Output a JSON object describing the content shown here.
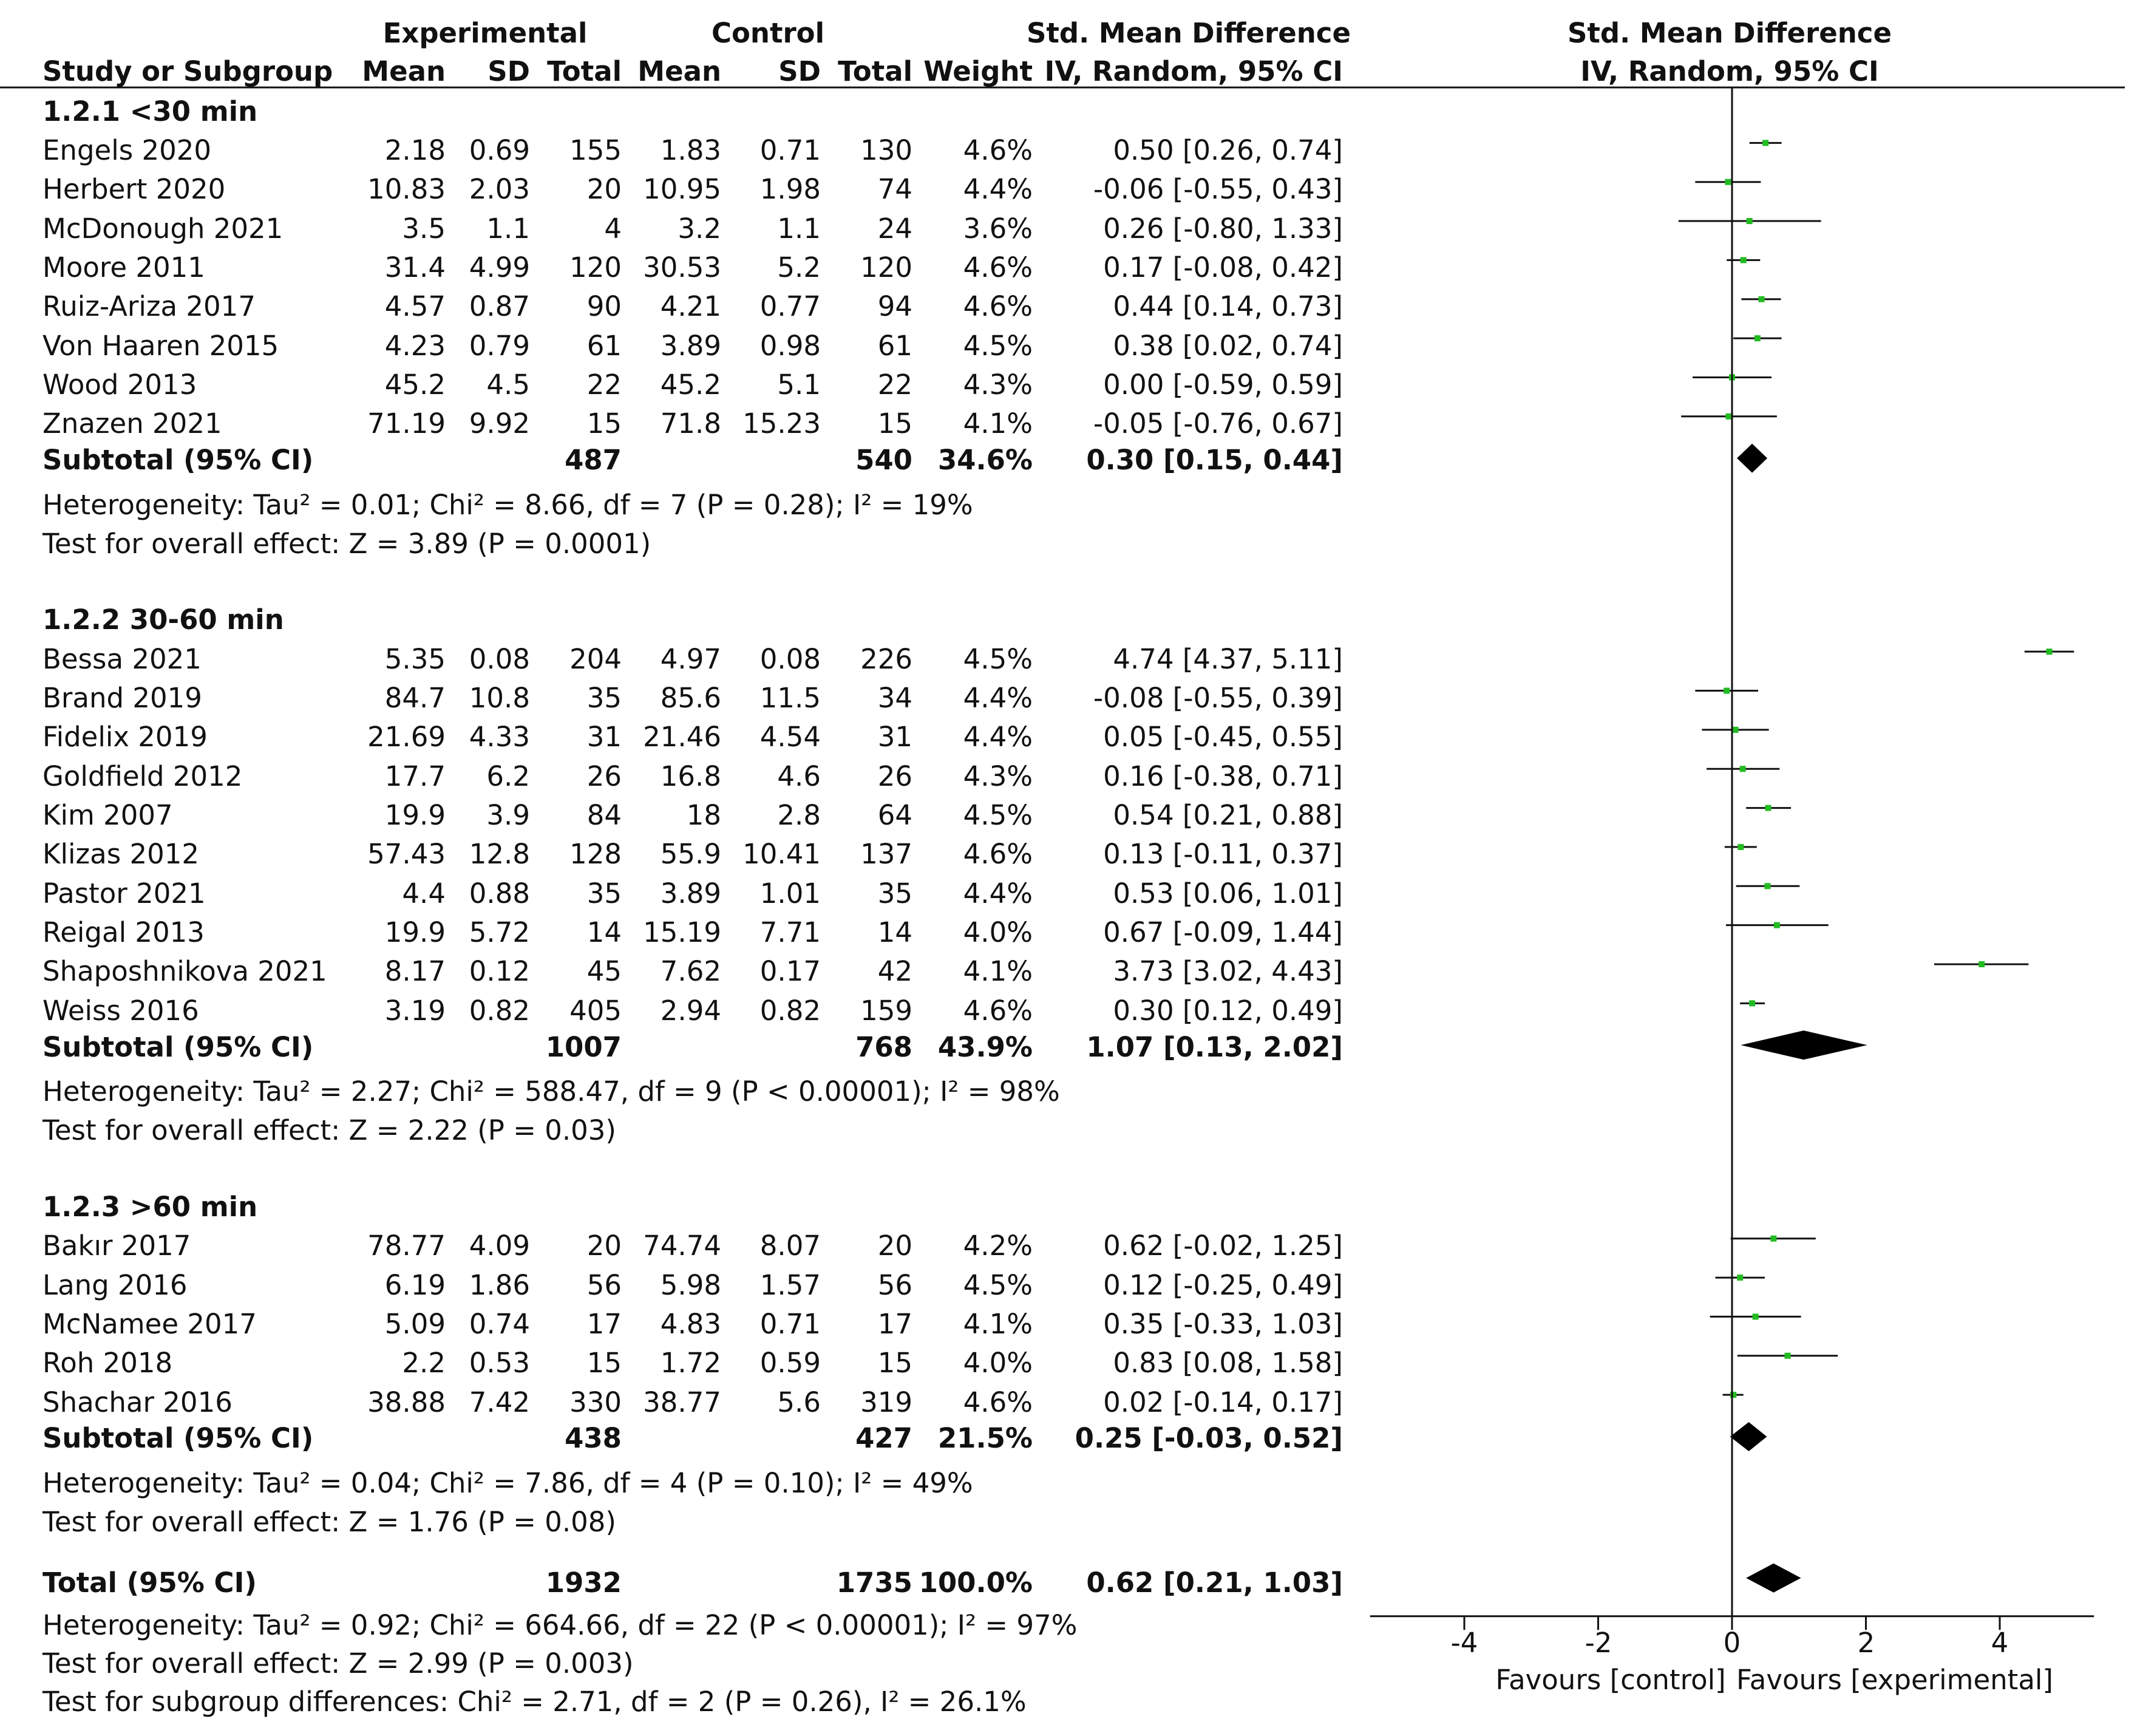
{
  "header": {
    "experimental": "Experimental",
    "control": "Control",
    "smd_table": "Std. Mean Difference",
    "smd_plot": "Std. Mean Difference",
    "col_study": "Study or Subgroup",
    "col_mean_e": "Mean",
    "col_sd_e": "SD",
    "col_total_e": "Total",
    "col_mean_c": "Mean",
    "col_sd_c": "SD",
    "col_total_c": "Total",
    "col_weight": "Weight",
    "col_ci_table": "IV, Random, 95% CI",
    "col_ci_plot": "IV, Random, 95% CI"
  },
  "groups": [
    {
      "title": "1.2.1 <30 min",
      "studies": [
        {
          "name": "Engels 2020",
          "mean_e": "2.18",
          "sd_e": "0.69",
          "total_e": "155",
          "mean_c": "1.83",
          "sd_c": "0.71",
          "total_c": "130",
          "weight": "4.6%",
          "ci": "0.50 [0.26, 0.74]",
          "est": 0.5,
          "lo": 0.26,
          "hi": 0.74
        },
        {
          "name": "Herbert 2020",
          "mean_e": "10.83",
          "sd_e": "2.03",
          "total_e": "20",
          "mean_c": "10.95",
          "sd_c": "1.98",
          "total_c": "74",
          "weight": "4.4%",
          "ci": "-0.06 [-0.55, 0.43]",
          "est": -0.06,
          "lo": -0.55,
          "hi": 0.43
        },
        {
          "name": "McDonough 2021",
          "mean_e": "3.5",
          "sd_e": "1.1",
          "total_e": "4",
          "mean_c": "3.2",
          "sd_c": "1.1",
          "total_c": "24",
          "weight": "3.6%",
          "ci": "0.26 [-0.80, 1.33]",
          "est": 0.26,
          "lo": -0.8,
          "hi": 1.33
        },
        {
          "name": "Moore 2011",
          "mean_e": "31.4",
          "sd_e": "4.99",
          "total_e": "120",
          "mean_c": "30.53",
          "sd_c": "5.2",
          "total_c": "120",
          "weight": "4.6%",
          "ci": "0.17 [-0.08, 0.42]",
          "est": 0.17,
          "lo": -0.08,
          "hi": 0.42
        },
        {
          "name": "Ruiz-Ariza 2017",
          "mean_e": "4.57",
          "sd_e": "0.87",
          "total_e": "90",
          "mean_c": "4.21",
          "sd_c": "0.77",
          "total_c": "94",
          "weight": "4.6%",
          "ci": "0.44 [0.14, 0.73]",
          "est": 0.44,
          "lo": 0.14,
          "hi": 0.73
        },
        {
          "name": "Von Haaren 2015",
          "mean_e": "4.23",
          "sd_e": "0.79",
          "total_e": "61",
          "mean_c": "3.89",
          "sd_c": "0.98",
          "total_c": "61",
          "weight": "4.5%",
          "ci": "0.38 [0.02, 0.74]",
          "est": 0.38,
          "lo": 0.02,
          "hi": 0.74
        },
        {
          "name": "Wood 2013",
          "mean_e": "45.2",
          "sd_e": "4.5",
          "total_e": "22",
          "mean_c": "45.2",
          "sd_c": "5.1",
          "total_c": "22",
          "weight": "4.3%",
          "ci": "0.00 [-0.59, 0.59]",
          "est": 0.0,
          "lo": -0.59,
          "hi": 0.59
        },
        {
          "name": "Znazen 2021",
          "mean_e": "71.19",
          "sd_e": "9.92",
          "total_e": "15",
          "mean_c": "71.8",
          "sd_c": "15.23",
          "total_c": "15",
          "weight": "4.1%",
          "ci": "-0.05 [-0.76, 0.67]",
          "est": -0.05,
          "lo": -0.76,
          "hi": 0.67
        }
      ],
      "subtotal": {
        "label": "Subtotal (95% CI)",
        "total_e": "487",
        "total_c": "540",
        "weight": "34.6%",
        "ci": "0.30 [0.15, 0.44]",
        "est": 0.3,
        "lo": 0.15,
        "hi": 0.44
      },
      "heterogeneity": "Heterogeneity: Tau² = 0.01; Chi² = 8.66, df = 7 (P = 0.28); I² = 19%",
      "overall": "Test for overall effect: Z = 3.89 (P = 0.0001)"
    },
    {
      "title": "1.2.2 30-60 min",
      "studies": [
        {
          "name": "Bessa 2021",
          "mean_e": "5.35",
          "sd_e": "0.08",
          "total_e": "204",
          "mean_c": "4.97",
          "sd_c": "0.08",
          "total_c": "226",
          "weight": "4.5%",
          "ci": "4.74 [4.37, 5.11]",
          "est": 4.74,
          "lo": 4.37,
          "hi": 5.11
        },
        {
          "name": "Brand 2019",
          "mean_e": "84.7",
          "sd_e": "10.8",
          "total_e": "35",
          "mean_c": "85.6",
          "sd_c": "11.5",
          "total_c": "34",
          "weight": "4.4%",
          "ci": "-0.08 [-0.55, 0.39]",
          "est": -0.08,
          "lo": -0.55,
          "hi": 0.39
        },
        {
          "name": "Fidelix 2019",
          "mean_e": "21.69",
          "sd_e": "4.33",
          "total_e": "31",
          "mean_c": "21.46",
          "sd_c": "4.54",
          "total_c": "31",
          "weight": "4.4%",
          "ci": "0.05 [-0.45, 0.55]",
          "est": 0.05,
          "lo": -0.45,
          "hi": 0.55
        },
        {
          "name": "Goldfield 2012",
          "mean_e": "17.7",
          "sd_e": "6.2",
          "total_e": "26",
          "mean_c": "16.8",
          "sd_c": "4.6",
          "total_c": "26",
          "weight": "4.3%",
          "ci": "0.16 [-0.38, 0.71]",
          "est": 0.16,
          "lo": -0.38,
          "hi": 0.71
        },
        {
          "name": "Kim 2007",
          "mean_e": "19.9",
          "sd_e": "3.9",
          "total_e": "84",
          "mean_c": "18",
          "sd_c": "2.8",
          "total_c": "64",
          "weight": "4.5%",
          "ci": "0.54 [0.21, 0.88]",
          "est": 0.54,
          "lo": 0.21,
          "hi": 0.88
        },
        {
          "name": "Klizas 2012",
          "mean_e": "57.43",
          "sd_e": "12.8",
          "total_e": "128",
          "mean_c": "55.9",
          "sd_c": "10.41",
          "total_c": "137",
          "weight": "4.6%",
          "ci": "0.13 [-0.11, 0.37]",
          "est": 0.13,
          "lo": -0.11,
          "hi": 0.37
        },
        {
          "name": "Pastor 2021",
          "mean_e": "4.4",
          "sd_e": "0.88",
          "total_e": "35",
          "mean_c": "3.89",
          "sd_c": "1.01",
          "total_c": "35",
          "weight": "4.4%",
          "ci": "0.53 [0.06, 1.01]",
          "est": 0.53,
          "lo": 0.06,
          "hi": 1.01
        },
        {
          "name": "Reigal 2013",
          "mean_e": "19.9",
          "sd_e": "5.72",
          "total_e": "14",
          "mean_c": "15.19",
          "sd_c": "7.71",
          "total_c": "14",
          "weight": "4.0%",
          "ci": "0.67 [-0.09, 1.44]",
          "est": 0.67,
          "lo": -0.09,
          "hi": 1.44
        },
        {
          "name": "Shaposhnikova 2021",
          "mean_e": "8.17",
          "sd_e": "0.12",
          "total_e": "45",
          "mean_c": "7.62",
          "sd_c": "0.17",
          "total_c": "42",
          "weight": "4.1%",
          "ci": "3.73 [3.02, 4.43]",
          "est": 3.73,
          "lo": 3.02,
          "hi": 4.43
        },
        {
          "name": "Weiss 2016",
          "mean_e": "3.19",
          "sd_e": "0.82",
          "total_e": "405",
          "mean_c": "2.94",
          "sd_c": "0.82",
          "total_c": "159",
          "weight": "4.6%",
          "ci": "0.30 [0.12, 0.49]",
          "est": 0.3,
          "lo": 0.12,
          "hi": 0.49
        }
      ],
      "subtotal": {
        "label": "Subtotal (95% CI)",
        "total_e": "1007",
        "total_c": "768",
        "weight": "43.9%",
        "ci": "1.07 [0.13, 2.02]",
        "est": 1.07,
        "lo": 0.13,
        "hi": 2.02
      },
      "heterogeneity": "Heterogeneity: Tau² = 2.27; Chi² = 588.47, df = 9 (P < 0.00001); I² = 98%",
      "overall": "Test for overall effect: Z = 2.22 (P = 0.03)"
    },
    {
      "title": "1.2.3 >60 min",
      "studies": [
        {
          "name": "Bakır 2017",
          "mean_e": "78.77",
          "sd_e": "4.09",
          "total_e": "20",
          "mean_c": "74.74",
          "sd_c": "8.07",
          "total_c": "20",
          "weight": "4.2%",
          "ci": "0.62 [-0.02, 1.25]",
          "est": 0.62,
          "lo": -0.02,
          "hi": 1.25
        },
        {
          "name": "Lang 2016",
          "mean_e": "6.19",
          "sd_e": "1.86",
          "total_e": "56",
          "mean_c": "5.98",
          "sd_c": "1.57",
          "total_c": "56",
          "weight": "4.5%",
          "ci": "0.12 [-0.25, 0.49]",
          "est": 0.12,
          "lo": -0.25,
          "hi": 0.49
        },
        {
          "name": "McNamee 2017",
          "mean_e": "5.09",
          "sd_e": "0.74",
          "total_e": "17",
          "mean_c": "4.83",
          "sd_c": "0.71",
          "total_c": "17",
          "weight": "4.1%",
          "ci": "0.35 [-0.33, 1.03]",
          "est": 0.35,
          "lo": -0.33,
          "hi": 1.03
        },
        {
          "name": "Roh 2018",
          "mean_e": "2.2",
          "sd_e": "0.53",
          "total_e": "15",
          "mean_c": "1.72",
          "sd_c": "0.59",
          "total_c": "15",
          "weight": "4.0%",
          "ci": "0.83 [0.08, 1.58]",
          "est": 0.83,
          "lo": 0.08,
          "hi": 1.58
        },
        {
          "name": "Shachar 2016",
          "mean_e": "38.88",
          "sd_e": "7.42",
          "total_e": "330",
          "mean_c": "38.77",
          "sd_c": "5.6",
          "total_c": "319",
          "weight": "4.6%",
          "ci": "0.02 [-0.14, 0.17]",
          "est": 0.02,
          "lo": -0.14,
          "hi": 0.17
        }
      ],
      "subtotal": {
        "label": "Subtotal (95% CI)",
        "total_e": "438",
        "total_c": "427",
        "weight": "21.5%",
        "ci": "0.25 [-0.03, 0.52]",
        "est": 0.25,
        "lo": -0.03,
        "hi": 0.52
      },
      "heterogeneity": "Heterogeneity: Tau² = 0.04; Chi² = 7.86, df = 4 (P = 0.10); I² = 49%",
      "overall": "Test for overall effect: Z = 1.76 (P = 0.08)"
    }
  ],
  "total": {
    "label": "Total (95% CI)",
    "total_e": "1932",
    "total_c": "1735",
    "weight": "100.0%",
    "ci": "0.62 [0.21, 1.03]",
    "est": 0.62,
    "lo": 0.21,
    "hi": 1.03,
    "heterogeneity": "Heterogeneity: Tau² = 0.92; Chi² = 664.66, df = 22 (P < 0.00001); I² = 97%",
    "overall": "Test for overall effect: Z = 2.99 (P = 0.003)",
    "subgroup": "Test for subgroup differences: Chi² = 2.71, df = 2 (P = 0.26), I² = 26.1%"
  },
  "axis": {
    "ticks": [
      -4,
      -2,
      0,
      2,
      4
    ],
    "tick_labels": [
      "-4",
      "-2",
      "0",
      "2",
      "4"
    ],
    "range": [
      -5.5,
      5.5
    ],
    "favours_left": "Favours [control]",
    "favours_right": "Favours [experimental]"
  },
  "colors": {
    "marker": "#22bb22",
    "line": "#111111",
    "diamond": "#000000"
  },
  "chart_data": {
    "type": "forest",
    "title": "Std. Mean Difference IV, Random, 95% CI",
    "xlabel": "",
    "xlim": [
      -5.5,
      5.5
    ],
    "x_ticks": [
      -4,
      -2,
      0,
      2,
      4
    ],
    "series": [
      {
        "name": "1.2.1 <30 min",
        "points": [
          {
            "study": "Engels 2020",
            "est": 0.5,
            "lo": 0.26,
            "hi": 0.74
          },
          {
            "study": "Herbert 2020",
            "est": -0.06,
            "lo": -0.55,
            "hi": 0.43
          },
          {
            "study": "McDonough 2021",
            "est": 0.26,
            "lo": -0.8,
            "hi": 1.33
          },
          {
            "study": "Moore 2011",
            "est": 0.17,
            "lo": -0.08,
            "hi": 0.42
          },
          {
            "study": "Ruiz-Ariza 2017",
            "est": 0.44,
            "lo": 0.14,
            "hi": 0.73
          },
          {
            "study": "Von Haaren 2015",
            "est": 0.38,
            "lo": 0.02,
            "hi": 0.74
          },
          {
            "study": "Wood 2013",
            "est": 0.0,
            "lo": -0.59,
            "hi": 0.59
          },
          {
            "study": "Znazen 2021",
            "est": -0.05,
            "lo": -0.76,
            "hi": 0.67
          }
        ],
        "subtotal": {
          "est": 0.3,
          "lo": 0.15,
          "hi": 0.44
        }
      },
      {
        "name": "1.2.2 30-60 min",
        "points": [
          {
            "study": "Bessa 2021",
            "est": 4.74,
            "lo": 4.37,
            "hi": 5.11
          },
          {
            "study": "Brand 2019",
            "est": -0.08,
            "lo": -0.55,
            "hi": 0.39
          },
          {
            "study": "Fidelix 2019",
            "est": 0.05,
            "lo": -0.45,
            "hi": 0.55
          },
          {
            "study": "Goldfield 2012",
            "est": 0.16,
            "lo": -0.38,
            "hi": 0.71
          },
          {
            "study": "Kim 2007",
            "est": 0.54,
            "lo": 0.21,
            "hi": 0.88
          },
          {
            "study": "Klizas 2012",
            "est": 0.13,
            "lo": -0.11,
            "hi": 0.37
          },
          {
            "study": "Pastor 2021",
            "est": 0.53,
            "lo": 0.06,
            "hi": 1.01
          },
          {
            "study": "Reigal 2013",
            "est": 0.67,
            "lo": -0.09,
            "hi": 1.44
          },
          {
            "study": "Shaposhnikova 2021",
            "est": 3.73,
            "lo": 3.02,
            "hi": 4.43
          },
          {
            "study": "Weiss 2016",
            "est": 0.3,
            "lo": 0.12,
            "hi": 0.49
          }
        ],
        "subtotal": {
          "est": 1.07,
          "lo": 0.13,
          "hi": 2.02
        }
      },
      {
        "name": "1.2.3 >60 min",
        "points": [
          {
            "study": "Bakır 2017",
            "est": 0.62,
            "lo": -0.02,
            "hi": 1.25
          },
          {
            "study": "Lang 2016",
            "est": 0.12,
            "lo": -0.25,
            "hi": 0.49
          },
          {
            "study": "McNamee 2017",
            "est": 0.35,
            "lo": -0.33,
            "hi": 1.03
          },
          {
            "study": "Roh 2018",
            "est": 0.83,
            "lo": 0.08,
            "hi": 1.58
          },
          {
            "study": "Shachar 2016",
            "est": 0.02,
            "lo": -0.14,
            "hi": 0.17
          }
        ],
        "subtotal": {
          "est": 0.25,
          "lo": -0.03,
          "hi": 0.52
        }
      }
    ],
    "overall": {
      "est": 0.62,
      "lo": 0.21,
      "hi": 1.03
    }
  }
}
